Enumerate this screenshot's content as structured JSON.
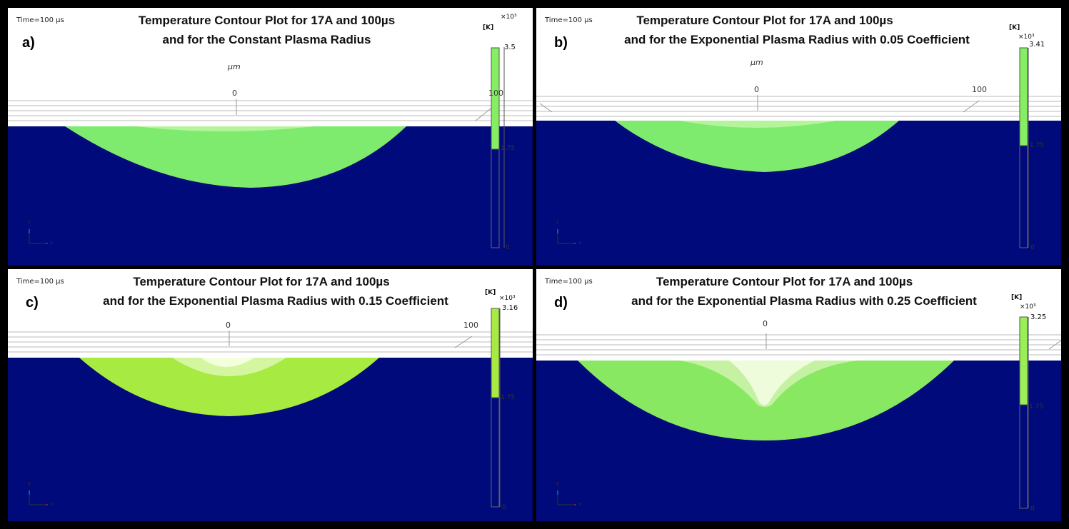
{
  "common": {
    "time_label": "Time=100 µs",
    "unit_label": "µm",
    "colorbar_unit": "[K]",
    "colorbar_exponent": "×10³",
    "colorbar_mid": "1.75",
    "colorbar_zero": "0",
    "tick_zero": "0",
    "tick_hundred": "100",
    "axis_z": "z",
    "axis_x": "x",
    "colors": {
      "substrate": "#000a7a",
      "melt_pool": "#7eea6e",
      "melt_pool_yellow": "#a6ea42",
      "colorbar_fill": "#86ee62"
    }
  },
  "panels": [
    {
      "letter": "a)",
      "title_line1": "Temperature Contour Plot for 17A and 100µs",
      "title_line2": "and for the Constant Plasma Radius",
      "colorbar_max": "3.5"
    },
    {
      "letter": "b)",
      "title_line1": "Temperature Contour Plot for 17A and 100µs",
      "title_line2": "and for the Exponential Plasma Radius with 0.05 Coefficient",
      "colorbar_max": "3.41"
    },
    {
      "letter": "c)",
      "title_line1": "Temperature Contour Plot for 17A and 100µs",
      "title_line2": "and for the Exponential Plasma Radius with 0.15 Coefficient",
      "colorbar_max": "3.16"
    },
    {
      "letter": "d)",
      "title_line1": "Temperature Contour Plot for 17A and 100µs",
      "title_line2": "and for the Exponential Plasma Radius with 0.25 Coefficient",
      "colorbar_max": "3.25"
    }
  ]
}
